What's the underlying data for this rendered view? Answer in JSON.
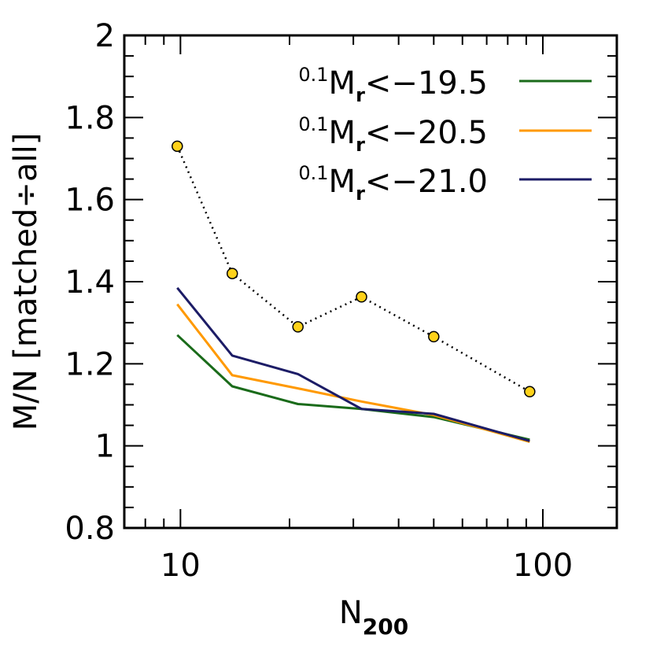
{
  "chart_data": {
    "type": "line",
    "xlabel": {
      "main": "N",
      "sub": "200"
    },
    "ylabel": "M/N [matched÷all]",
    "x_scale": "log",
    "xlim": [
      7,
      160
    ],
    "ylim": [
      0.8,
      2.0
    ],
    "x_major_ticks": [
      {
        "value": 10,
        "label": "10"
      },
      {
        "value": 100,
        "label": "100"
      }
    ],
    "y_major_ticks": [
      {
        "value": 0.8,
        "label": "0.8"
      },
      {
        "value": 1.0,
        "label": "1"
      },
      {
        "value": 1.2,
        "label": "1.2"
      },
      {
        "value": 1.4,
        "label": "1.4"
      },
      {
        "value": 1.6,
        "label": "1.6"
      },
      {
        "value": 1.8,
        "label": "1.8"
      },
      {
        "value": 2.0,
        "label": "2"
      }
    ],
    "legend_position": "top-right",
    "series": [
      {
        "name": "0.1Mr<−19.5",
        "legend": {
          "sup": "0.1",
          "main": "M",
          "sub": "r",
          "rest": "<−19.5"
        },
        "color": "#1a6b1a",
        "style": "solid",
        "x": [
          9.8,
          13.9,
          21.1,
          31.6,
          50.0,
          92.0
        ],
        "y": [
          1.27,
          1.145,
          1.102,
          1.09,
          1.07,
          1.015
        ]
      },
      {
        "name": "0.1Mr<−20.5",
        "legend": {
          "sup": "0.1",
          "main": "M",
          "sub": "r",
          "rest": "<−20.5"
        },
        "color": "#ff9900",
        "style": "solid",
        "x": [
          9.8,
          13.9,
          21.1,
          31.6,
          50.0,
          92.0
        ],
        "y": [
          1.345,
          1.172,
          1.14,
          1.108,
          1.075,
          1.01
        ]
      },
      {
        "name": "0.1Mr<−21.0",
        "legend": {
          "sup": "0.1",
          "main": "M",
          "sub": "r",
          "rest": "<−21.0"
        },
        "color": "#1c1c66",
        "style": "solid",
        "x": [
          9.8,
          13.9,
          21.1,
          31.6,
          50.0,
          92.0
        ],
        "y": [
          1.385,
          1.22,
          1.175,
          1.09,
          1.078,
          1.012
        ]
      },
      {
        "color": "#000000",
        "style": "dotted",
        "marker_color": "#ffd21a",
        "x": [
          9.8,
          13.9,
          21.1,
          31.6,
          50.0,
          92.0
        ],
        "y": [
          1.73,
          1.42,
          1.29,
          1.363,
          1.266,
          1.132
        ]
      }
    ]
  }
}
